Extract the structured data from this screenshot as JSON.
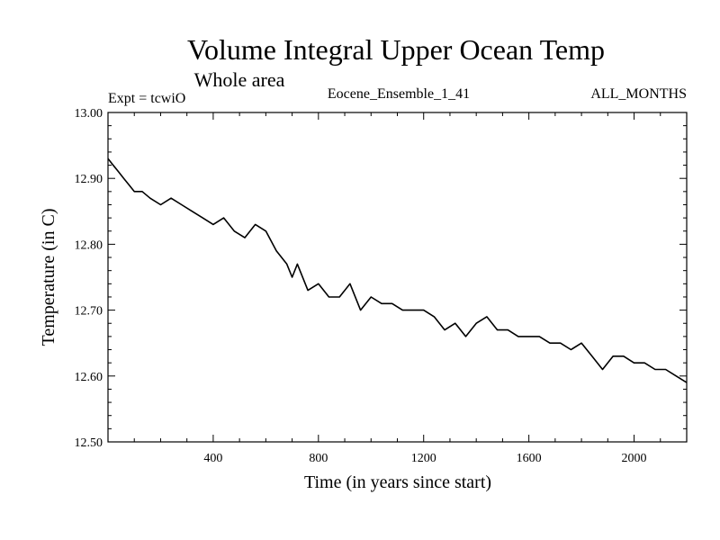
{
  "header": {
    "title": "Volume Integral Upper Ocean Temp",
    "subtitle": "Whole area",
    "experiment": "Expt = tcwiO",
    "ensemble": "Eocene_Ensemble_1_41",
    "months": "ALL_MONTHS"
  },
  "chart_data": {
    "type": "line",
    "xlabel": "Time (in years since start)",
    "ylabel": "Temperature (in C)",
    "xlim": [
      0,
      2200
    ],
    "ylim": [
      12.5,
      13.0
    ],
    "x_ticks": [
      400,
      800,
      1200,
      1600,
      2000
    ],
    "x_tick_labels": [
      "400",
      "800",
      "1200",
      "1600",
      "2000"
    ],
    "y_ticks": [
      12.5,
      12.6,
      12.7,
      12.8,
      12.9,
      13.0
    ],
    "y_tick_labels": [
      "12.50",
      "12.60",
      "12.70",
      "12.80",
      "12.90",
      "13.00"
    ],
    "grid": false,
    "color": "#000000",
    "series": [
      {
        "x": [
          0,
          20,
          40,
          60,
          80,
          100,
          130,
          160,
          200,
          240,
          280,
          320,
          360,
          400,
          440,
          480,
          520,
          560,
          600,
          640,
          680,
          700,
          720,
          760,
          800,
          840,
          880,
          920,
          960,
          1000,
          1040,
          1080,
          1120,
          1160,
          1200,
          1240,
          1280,
          1320,
          1360,
          1400,
          1440,
          1480,
          1520,
          1560,
          1600,
          1640,
          1680,
          1720,
          1760,
          1800,
          1840,
          1880,
          1920,
          1960,
          2000,
          2040,
          2080,
          2120,
          2160,
          2200
        ],
        "y": [
          12.93,
          12.92,
          12.91,
          12.9,
          12.89,
          12.88,
          12.88,
          12.87,
          12.86,
          12.87,
          12.86,
          12.85,
          12.84,
          12.83,
          12.84,
          12.82,
          12.81,
          12.83,
          12.82,
          12.79,
          12.77,
          12.75,
          12.77,
          12.73,
          12.74,
          12.72,
          12.72,
          12.74,
          12.7,
          12.72,
          12.71,
          12.71,
          12.7,
          12.7,
          12.7,
          12.69,
          12.67,
          12.68,
          12.66,
          12.68,
          12.69,
          12.67,
          12.67,
          12.66,
          12.66,
          12.66,
          12.65,
          12.65,
          12.64,
          12.65,
          12.63,
          12.61,
          12.63,
          12.63,
          12.62,
          12.62,
          12.61,
          12.61,
          12.6,
          12.59
        ]
      }
    ]
  }
}
